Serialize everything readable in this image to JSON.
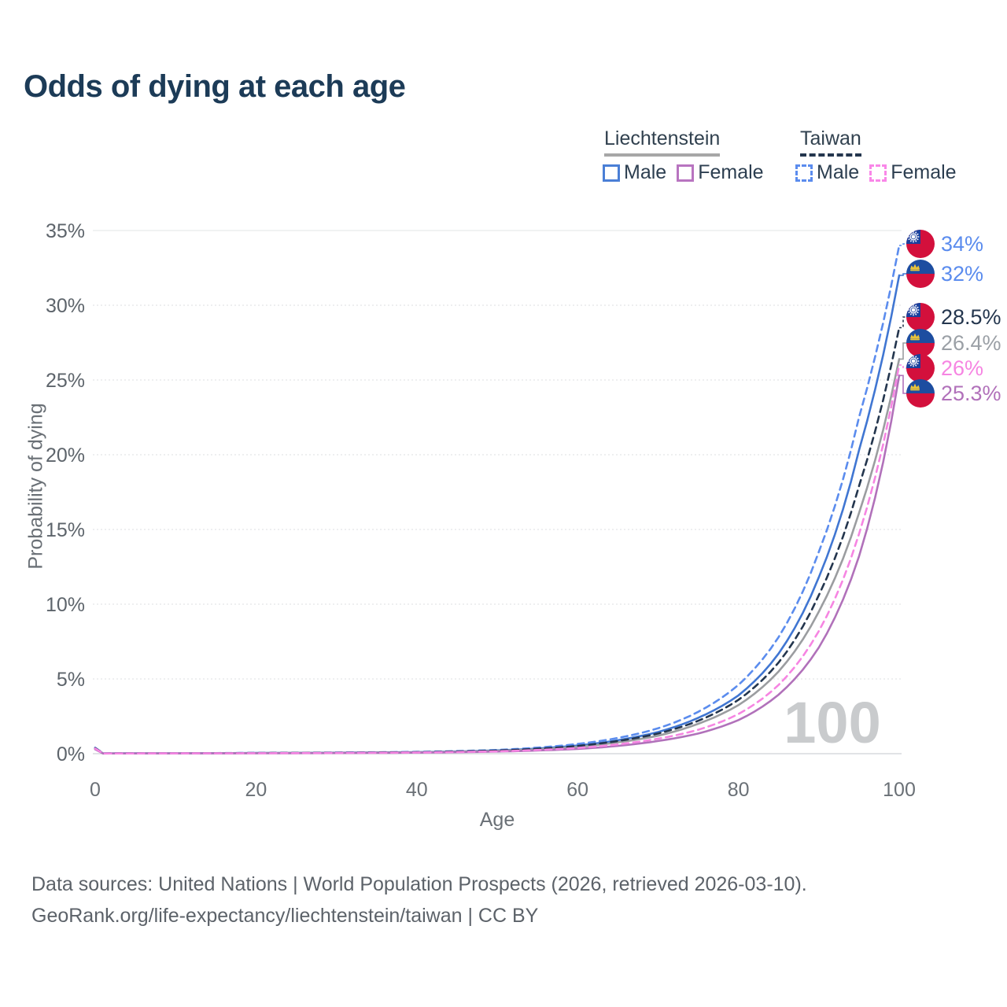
{
  "title": "Odds of dying at each age",
  "legend": {
    "groups": [
      {
        "title": "Liechtenstein",
        "line_style": "solid",
        "items": [
          {
            "label": "Male",
            "color": "#4a7fd6",
            "dashed": false
          },
          {
            "label": "Female",
            "color": "#b874c0",
            "dashed": false
          }
        ]
      },
      {
        "title": "Taiwan",
        "line_style": "dashed",
        "items": [
          {
            "label": "Male",
            "color": "#5b8cee",
            "dashed": true
          },
          {
            "label": "Female",
            "color": "#f987e8",
            "dashed": true
          }
        ]
      }
    ]
  },
  "chart_data": {
    "type": "line",
    "xlabel": "Age",
    "ylabel": "Probability of dying",
    "xlim": [
      0,
      100
    ],
    "ylim": [
      0,
      35
    ],
    "xticks": [
      "0",
      "20",
      "40",
      "60",
      "80",
      "100"
    ],
    "yticks": [
      "0%",
      "5%",
      "10%",
      "15%",
      "20%",
      "25%",
      "30%",
      "35%"
    ],
    "grid": "horizontal-dotted",
    "legend_position": "top-right",
    "watermark": "100",
    "series": [
      {
        "name": "Taiwan Male",
        "country": "Taiwan",
        "sex": "Male",
        "color": "#5b8cee",
        "label_color": "#5b8cee",
        "dashed": true,
        "flag": "taiwan",
        "end_value": 34,
        "end_label": "34%",
        "points": [
          [
            0,
            0.4
          ],
          [
            1,
            0.02
          ],
          [
            20,
            0.05
          ],
          [
            40,
            0.12
          ],
          [
            50,
            0.25
          ],
          [
            60,
            0.65
          ],
          [
            65,
            1.05
          ],
          [
            70,
            1.7
          ],
          [
            75,
            2.8
          ],
          [
            80,
            4.6
          ],
          [
            85,
            7.8
          ],
          [
            90,
            13.5
          ],
          [
            95,
            22.5
          ],
          [
            100,
            34
          ]
        ]
      },
      {
        "name": "Liechtenstein Male",
        "country": "Liechtenstein",
        "sex": "Male",
        "color": "#4076d2",
        "label_color": "#5b8cee",
        "dashed": false,
        "flag": "liechtenstein",
        "end_value": 32,
        "end_label": "32%",
        "points": [
          [
            0,
            0.35
          ],
          [
            1,
            0.017
          ],
          [
            20,
            0.045
          ],
          [
            40,
            0.1
          ],
          [
            50,
            0.22
          ],
          [
            60,
            0.55
          ],
          [
            65,
            0.9
          ],
          [
            70,
            1.45
          ],
          [
            75,
            2.4
          ],
          [
            80,
            3.9
          ],
          [
            85,
            6.7
          ],
          [
            90,
            11.8
          ],
          [
            95,
            20.3
          ],
          [
            100,
            32
          ]
        ]
      },
      {
        "name": "Taiwan",
        "country": "Taiwan",
        "sex": "Both",
        "color": "#24364e",
        "label_color": "#24364e",
        "dashed": true,
        "flag": "taiwan",
        "end_value": 28.5,
        "end_label": "28.5%",
        "points": [
          [
            0,
            0.37
          ],
          [
            1,
            0.018
          ],
          [
            20,
            0.042
          ],
          [
            40,
            0.1
          ],
          [
            50,
            0.21
          ],
          [
            60,
            0.52
          ],
          [
            65,
            0.85
          ],
          [
            70,
            1.35
          ],
          [
            75,
            2.2
          ],
          [
            80,
            3.6
          ],
          [
            85,
            6.1
          ],
          [
            90,
            10.6
          ],
          [
            95,
            17.9
          ],
          [
            100,
            28.5
          ]
        ]
      },
      {
        "name": "Liechtenstein",
        "country": "Liechtenstein",
        "sex": "Both",
        "color": "#9b9da0",
        "label_color": "#9ba0a6",
        "dashed": false,
        "flag": "liechtenstein",
        "end_value": 26.4,
        "end_label": "26.4%",
        "points": [
          [
            0,
            0.32
          ],
          [
            1,
            0.015
          ],
          [
            20,
            0.038
          ],
          [
            40,
            0.09
          ],
          [
            50,
            0.19
          ],
          [
            60,
            0.46
          ],
          [
            65,
            0.76
          ],
          [
            70,
            1.2
          ],
          [
            75,
            2.0
          ],
          [
            80,
            3.25
          ],
          [
            85,
            5.5
          ],
          [
            90,
            9.5
          ],
          [
            95,
            16.1
          ],
          [
            100,
            26.4
          ]
        ]
      },
      {
        "name": "Taiwan Female",
        "country": "Taiwan",
        "sex": "Female",
        "color": "#f685e2",
        "label_color": "#f685e2",
        "dashed": true,
        "flag": "taiwan",
        "end_value": 26,
        "end_label": "26%",
        "points": [
          [
            0,
            0.34
          ],
          [
            1,
            0.016
          ],
          [
            20,
            0.03
          ],
          [
            40,
            0.08
          ],
          [
            50,
            0.16
          ],
          [
            60,
            0.38
          ],
          [
            65,
            0.62
          ],
          [
            70,
            1.0
          ],
          [
            75,
            1.6
          ],
          [
            80,
            2.65
          ],
          [
            85,
            4.6
          ],
          [
            90,
            8.2
          ],
          [
            95,
            14.7
          ],
          [
            100,
            26
          ]
        ]
      },
      {
        "name": "Liechtenstein Female",
        "country": "Liechtenstein",
        "sex": "Female",
        "color": "#b171ba",
        "label_color": "#b171ba",
        "dashed": false,
        "flag": "liechtenstein",
        "end_value": 25.3,
        "end_label": "25.3%",
        "points": [
          [
            0,
            0.29
          ],
          [
            1,
            0.013
          ],
          [
            20,
            0.026
          ],
          [
            40,
            0.07
          ],
          [
            50,
            0.14
          ],
          [
            60,
            0.32
          ],
          [
            65,
            0.52
          ],
          [
            70,
            0.85
          ],
          [
            75,
            1.35
          ],
          [
            80,
            2.25
          ],
          [
            85,
            3.95
          ],
          [
            90,
            7.1
          ],
          [
            95,
            13.2
          ],
          [
            100,
            25.3
          ]
        ]
      }
    ]
  },
  "footer": {
    "line1": "Data sources: United Nations | World Population Prospects (2026, retrieved 2026-03-10).",
    "line2": "GeoRank.org/life-expectancy/liechtenstein/taiwan | CC BY"
  }
}
